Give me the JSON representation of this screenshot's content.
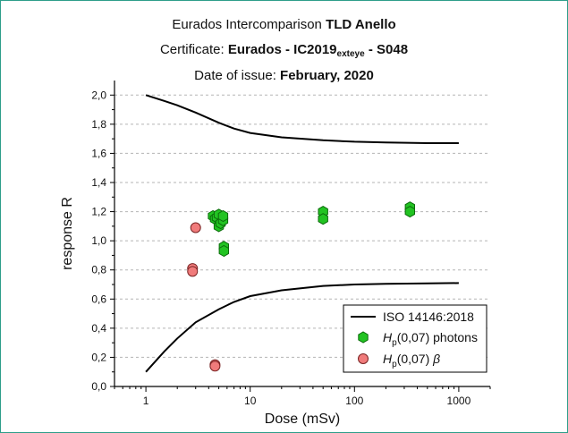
{
  "header": {
    "line1_prefix": "Eurados Intercomparison ",
    "line1_bold": "TLD Anello",
    "line2_prefix": "Certificate: ",
    "line2_bold": "Eurados - IC2019",
    "line2_sub": "exteye",
    "line2_bold_suffix": " - S048",
    "line3_prefix": "Date of issue: ",
    "line3_bold": "February, 2020"
  },
  "chart_data": {
    "type": "scatter",
    "xlabel": "Dose (mSv)",
    "ylabel": "response R",
    "xscale": "log",
    "xlim": [
      0.5,
      2000
    ],
    "ylim": [
      0.0,
      2.1
    ],
    "x_ticks": [
      1,
      10,
      100,
      1000
    ],
    "x_tick_labels": [
      "1",
      "10",
      "100",
      "1000"
    ],
    "y_ticks": [
      0.0,
      0.2,
      0.4,
      0.6,
      0.8,
      1.0,
      1.2,
      1.4,
      1.6,
      1.8,
      2.0
    ],
    "y_tick_labels": [
      "0,0",
      "0,2",
      "0,4",
      "0,6",
      "0,8",
      "1,0",
      "1,2",
      "1,4",
      "1,6",
      "1,8",
      "2,0"
    ],
    "grid": "horizontal-dashed",
    "legend_position": "bottom-right",
    "series": [
      {
        "name": "ISO 14146:2018",
        "kind": "line",
        "color": "#000000",
        "curves": [
          {
            "x": [
              1,
              1.5,
              2,
              3,
              5,
              7,
              10,
              20,
              50,
              100,
              200,
              500,
              1000
            ],
            "y": [
              2.0,
              1.96,
              1.93,
              1.88,
              1.81,
              1.77,
              1.74,
              1.71,
              1.69,
              1.68,
              1.675,
              1.67,
              1.67
            ]
          },
          {
            "x": [
              1,
              1.5,
              2,
              3,
              5,
              7,
              10,
              20,
              50,
              100,
              200,
              500,
              1000
            ],
            "y": [
              0.1,
              0.24,
              0.33,
              0.44,
              0.53,
              0.58,
              0.62,
              0.66,
              0.69,
              0.7,
              0.705,
              0.708,
              0.71
            ]
          }
        ]
      },
      {
        "name": "H_p(0,07) photons",
        "legend_label": {
          "main": "H",
          "sub": "p",
          "rest": "(0,07) photons"
        },
        "kind": "markers",
        "marker": "hexagon",
        "color": "#22c322",
        "edge": "#0b6b0b",
        "points": [
          {
            "x": 4.4,
            "y": 1.17
          },
          {
            "x": 4.6,
            "y": 1.15
          },
          {
            "x": 4.8,
            "y": 1.16
          },
          {
            "x": 5.0,
            "y": 1.18
          },
          {
            "x": 5.0,
            "y": 1.1
          },
          {
            "x": 5.2,
            "y": 1.12
          },
          {
            "x": 5.5,
            "y": 1.14
          },
          {
            "x": 5.5,
            "y": 1.17
          },
          {
            "x": 5.6,
            "y": 0.96
          },
          {
            "x": 5.6,
            "y": 0.93
          },
          {
            "x": 50,
            "y": 1.2
          },
          {
            "x": 50,
            "y": 1.15
          },
          {
            "x": 340,
            "y": 1.23
          },
          {
            "x": 340,
            "y": 1.2
          }
        ]
      },
      {
        "name": "H_p(0,07) beta",
        "legend_label": {
          "main": "H",
          "sub": "p",
          "rest": "(0,07) ",
          "greek": "β"
        },
        "kind": "markers",
        "marker": "circle",
        "color": "#f07b7b",
        "edge": "#7a2424",
        "points": [
          {
            "x": 3.0,
            "y": 1.09
          },
          {
            "x": 2.8,
            "y": 0.81
          },
          {
            "x": 2.8,
            "y": 0.79
          },
          {
            "x": 4.6,
            "y": 0.15
          },
          {
            "x": 4.6,
            "y": 0.14
          }
        ]
      }
    ]
  }
}
